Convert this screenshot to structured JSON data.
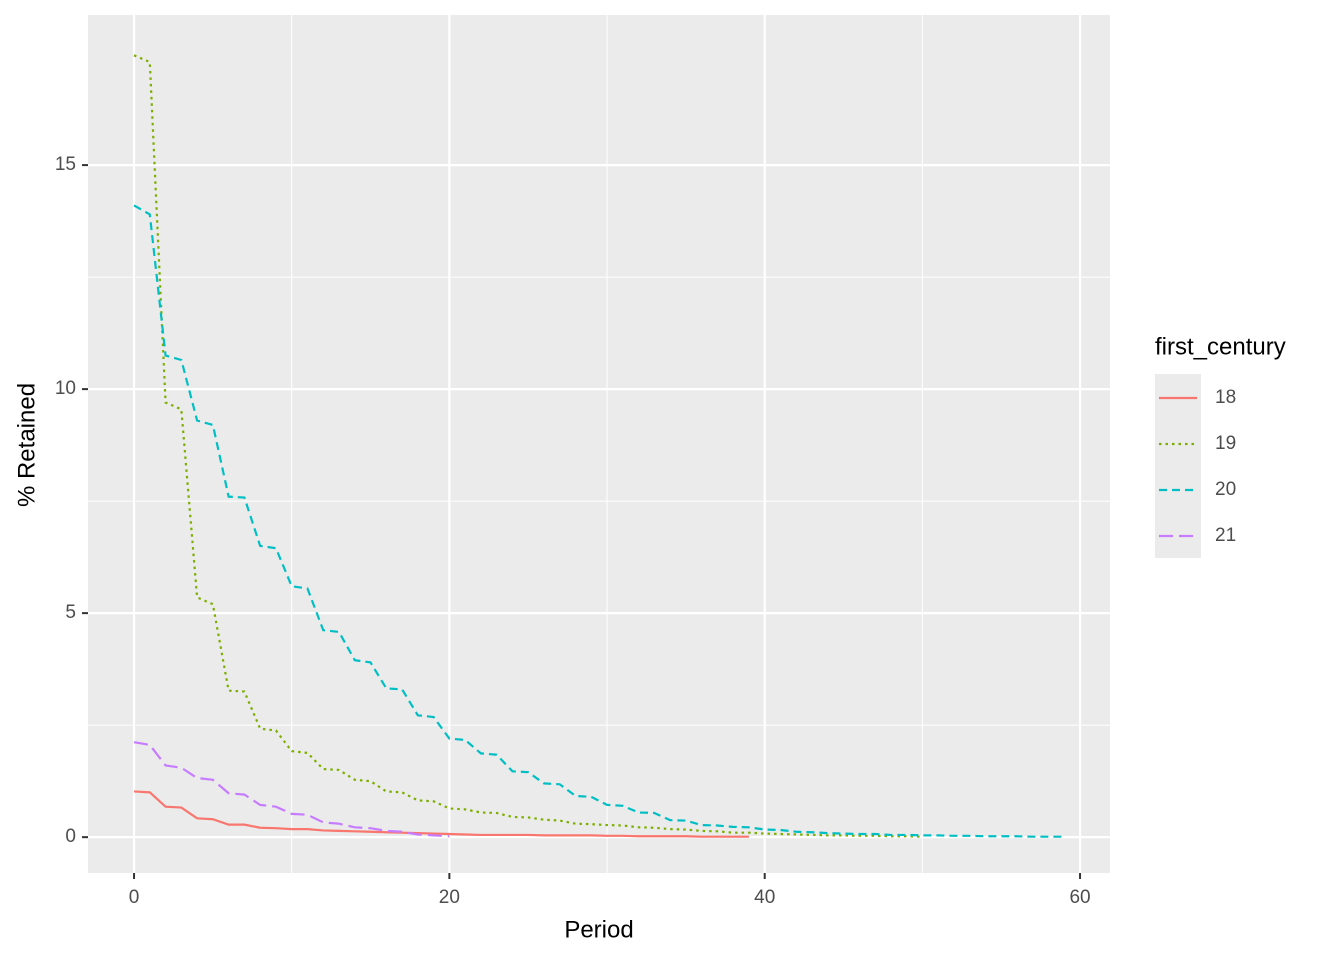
{
  "chart_data": {
    "type": "line",
    "x_label": "Period",
    "y_label": "% Retained",
    "legend_title": "first_century",
    "legend_position": "right",
    "xlim": [
      -2.92,
      61.9
    ],
    "ylim": [
      -0.8,
      18.35
    ],
    "xticks": [
      0,
      20,
      40,
      60
    ],
    "yticks": [
      0,
      5,
      10,
      15
    ],
    "grid": true,
    "series": [
      {
        "name": "18",
        "color": "#F8766D",
        "linetype": "solid",
        "x": [
          0,
          1,
          2,
          3,
          4,
          5,
          6,
          7,
          8,
          9,
          10,
          11,
          12,
          13,
          14,
          15,
          16,
          17,
          18,
          19,
          20,
          21,
          22,
          23,
          24,
          25,
          26,
          27,
          28,
          29,
          30,
          31,
          32,
          33,
          34,
          35,
          36,
          37,
          38,
          39
        ],
        "values": [
          1.02,
          1.0,
          0.68,
          0.66,
          0.42,
          0.4,
          0.28,
          0.28,
          0.21,
          0.2,
          0.18,
          0.18,
          0.15,
          0.14,
          0.13,
          0.12,
          0.11,
          0.1,
          0.09,
          0.08,
          0.07,
          0.06,
          0.05,
          0.05,
          0.05,
          0.05,
          0.04,
          0.04,
          0.04,
          0.04,
          0.03,
          0.03,
          0.02,
          0.02,
          0.02,
          0.02,
          0.01,
          0.01,
          0.01,
          0.01
        ]
      },
      {
        "name": "19",
        "color": "#7CAE00",
        "linetype": "dotted",
        "x": [
          0,
          1,
          2,
          3,
          4,
          5,
          6,
          7,
          8,
          9,
          10,
          11,
          12,
          13,
          14,
          15,
          16,
          17,
          18,
          19,
          20,
          21,
          22,
          23,
          24,
          25,
          26,
          27,
          28,
          29,
          30,
          31,
          32,
          33,
          34,
          35,
          36,
          37,
          38,
          39,
          40,
          41,
          42,
          43,
          44,
          45,
          46,
          47,
          48,
          49,
          50
        ],
        "values": [
          17.45,
          17.3,
          9.7,
          9.55,
          5.35,
          5.2,
          3.27,
          3.25,
          2.42,
          2.38,
          1.92,
          1.88,
          1.52,
          1.5,
          1.28,
          1.25,
          1.02,
          1.0,
          0.82,
          0.8,
          0.64,
          0.62,
          0.55,
          0.54,
          0.45,
          0.44,
          0.39,
          0.37,
          0.3,
          0.29,
          0.27,
          0.26,
          0.22,
          0.21,
          0.18,
          0.17,
          0.14,
          0.13,
          0.1,
          0.1,
          0.08,
          0.07,
          0.06,
          0.05,
          0.04,
          0.04,
          0.03,
          0.03,
          0.02,
          0.02,
          0.01
        ]
      },
      {
        "name": "20",
        "color": "#00BFC4",
        "linetype": "dashed",
        "x": [
          0,
          1,
          2,
          3,
          4,
          5,
          6,
          7,
          8,
          9,
          10,
          11,
          12,
          13,
          14,
          15,
          16,
          17,
          18,
          19,
          20,
          21,
          22,
          23,
          24,
          25,
          26,
          27,
          28,
          29,
          30,
          31,
          32,
          33,
          34,
          35,
          36,
          37,
          38,
          39,
          40,
          41,
          42,
          43,
          44,
          45,
          46,
          47,
          48,
          49,
          50,
          51,
          52,
          53,
          54,
          55,
          56,
          57,
          58,
          59
        ],
        "values": [
          14.1,
          13.9,
          10.75,
          10.65,
          9.3,
          9.2,
          7.6,
          7.58,
          6.5,
          6.45,
          5.6,
          5.55,
          4.62,
          4.58,
          3.95,
          3.9,
          3.32,
          3.3,
          2.72,
          2.68,
          2.2,
          2.17,
          1.87,
          1.84,
          1.47,
          1.45,
          1.2,
          1.18,
          0.92,
          0.9,
          0.72,
          0.7,
          0.55,
          0.54,
          0.38,
          0.37,
          0.27,
          0.26,
          0.23,
          0.22,
          0.17,
          0.16,
          0.12,
          0.11,
          0.09,
          0.08,
          0.07,
          0.07,
          0.05,
          0.05,
          0.04,
          0.04,
          0.03,
          0.03,
          0.02,
          0.02,
          0.02,
          0.01,
          0.01,
          0.01
        ]
      },
      {
        "name": "21",
        "color": "#C77CFF",
        "linetype": "longdash",
        "x": [
          0,
          1,
          2,
          3,
          4,
          5,
          6,
          7,
          8,
          9,
          10,
          11,
          12,
          13,
          14,
          15,
          16,
          17,
          18,
          19,
          20
        ],
        "values": [
          2.12,
          2.06,
          1.6,
          1.55,
          1.32,
          1.28,
          0.98,
          0.95,
          0.72,
          0.68,
          0.52,
          0.5,
          0.33,
          0.3,
          0.22,
          0.2,
          0.14,
          0.12,
          0.06,
          0.04,
          0.02
        ]
      }
    ]
  }
}
